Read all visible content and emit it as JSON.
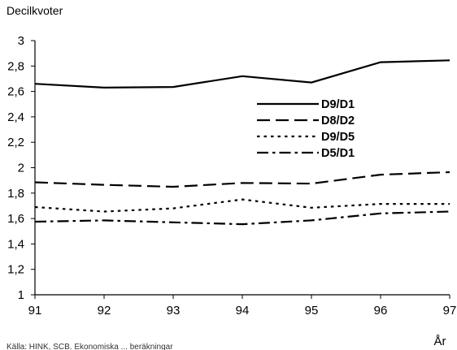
{
  "chart_data": {
    "type": "line",
    "title": "",
    "ylabel": "Decilkvoter",
    "xlabel": "År",
    "x": [
      "91",
      "92",
      "93",
      "94",
      "95",
      "96",
      "97"
    ],
    "y_ticks": [
      "1",
      "1,2",
      "1,4",
      "1,6",
      "1,8",
      "2",
      "2,2",
      "2,4",
      "2,6",
      "2,8",
      "3"
    ],
    "ylim": [
      1,
      3
    ],
    "grid": false,
    "legend_position": "right",
    "series": [
      {
        "name": "D9/D1",
        "style": "solid",
        "values": [
          2.66,
          2.63,
          2.635,
          2.72,
          2.67,
          2.83,
          2.845
        ]
      },
      {
        "name": "D8/D2",
        "style": "dashed",
        "values": [
          1.885,
          1.865,
          1.85,
          1.88,
          1.875,
          1.945,
          1.965
        ]
      },
      {
        "name": "D9/D5",
        "style": "dotted",
        "values": [
          1.69,
          1.655,
          1.68,
          1.75,
          1.685,
          1.715,
          1.715
        ]
      },
      {
        "name": "D5/D1",
        "style": "dashdot",
        "values": [
          1.575,
          1.585,
          1.57,
          1.555,
          1.585,
          1.64,
          1.655
        ]
      }
    ],
    "source_text": "Källa: HINK, SCB. Ekonomiska ... beräkningar"
  },
  "colors": {
    "line": "#000000",
    "axis": "#000000"
  }
}
